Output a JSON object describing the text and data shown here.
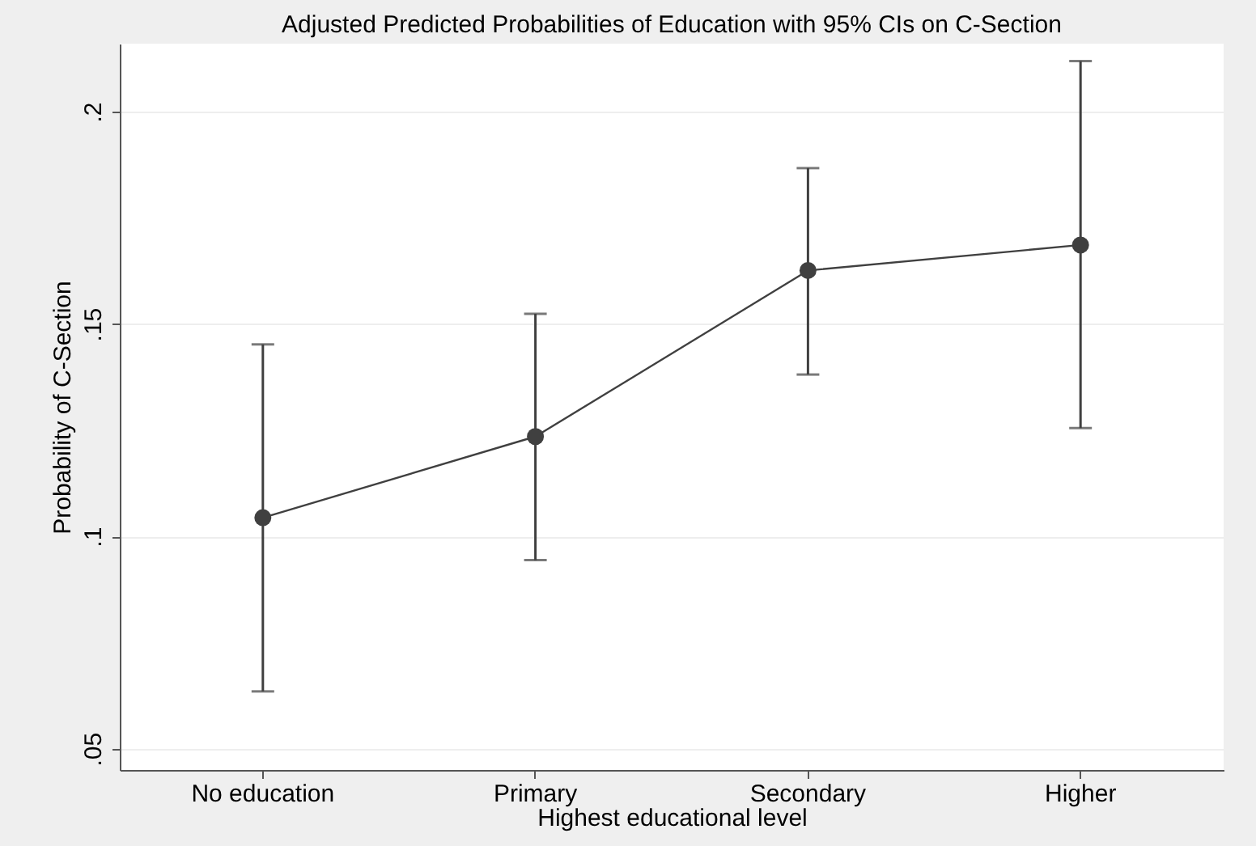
{
  "chart_data": {
    "type": "line",
    "title": "Adjusted Predicted Probabilities of Education with 95% CIs on C-Section",
    "xlabel": "Highest educational level",
    "ylabel": "Probability of C-Section",
    "categories": [
      "No education",
      "Primary",
      "Secondary",
      "Higher"
    ],
    "series": [
      {
        "color": "#404040",
        "values": [
          0.1044,
          0.1235,
          0.1626,
          0.1686
        ],
        "errors": [
          [
            0.0635,
            0.1452
          ],
          [
            0.0944,
            0.1524
          ],
          [
            0.1381,
            0.1867
          ],
          [
            0.1255,
            0.2119
          ]
        ]
      }
    ],
    "ylim": [
      0.045,
      0.216
    ],
    "yticks": [
      {
        "value": 0.05,
        "label": ".05"
      },
      {
        "value": 0.1,
        "label": ".1"
      },
      {
        "value": 0.15,
        "label": ".15"
      },
      {
        "value": 0.2,
        "label": ".2"
      }
    ],
    "grid": "y",
    "marker": "circle",
    "line_style": "solid"
  }
}
